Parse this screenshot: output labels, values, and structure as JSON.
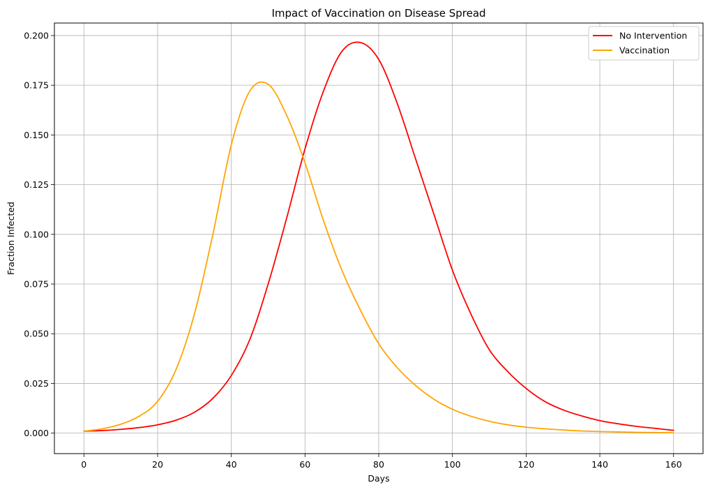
{
  "chart_data": {
    "type": "line",
    "title": "Impact of Vaccination on Disease Spread",
    "xlabel": "Days",
    "ylabel": "Fraction Infected",
    "xlim": [
      -8,
      168
    ],
    "ylim": [
      -0.0103,
      0.2063
    ],
    "xticks": [
      0,
      20,
      40,
      60,
      80,
      100,
      120,
      140,
      160
    ],
    "xtick_labels": [
      "0",
      "20",
      "40",
      "60",
      "80",
      "100",
      "120",
      "140",
      "160"
    ],
    "yticks": [
      0.0,
      0.025,
      0.05,
      0.075,
      0.1,
      0.125,
      0.15,
      0.175,
      0.2
    ],
    "ytick_labels": [
      "0.000",
      "0.025",
      "0.050",
      "0.075",
      "0.100",
      "0.125",
      "0.150",
      "0.175",
      "0.200"
    ],
    "grid": true,
    "legend_position": "top-right",
    "series": [
      {
        "name": "No Intervention",
        "color": "#ff0000",
        "x": [
          0,
          5,
          10,
          15,
          20,
          25,
          30,
          35,
          40,
          45,
          50,
          55,
          60,
          65,
          70,
          75,
          80,
          85,
          90,
          95,
          100,
          105,
          110,
          115,
          120,
          125,
          130,
          135,
          140,
          145,
          150,
          155,
          160
        ],
        "y": [
          0.001,
          0.0013,
          0.0019,
          0.0028,
          0.0042,
          0.0065,
          0.0105,
          0.0175,
          0.029,
          0.047,
          0.075,
          0.108,
          0.143,
          0.172,
          0.192,
          0.1965,
          0.188,
          0.166,
          0.138,
          0.11,
          0.082,
          0.06,
          0.042,
          0.031,
          0.0225,
          0.016,
          0.0117,
          0.0087,
          0.0063,
          0.0047,
          0.0034,
          0.0024,
          0.0014
        ]
      },
      {
        "name": "Vaccination",
        "color": "#ffa500",
        "x": [
          0,
          5,
          10,
          15,
          20,
          25,
          30,
          35,
          40,
          45,
          50,
          55,
          60,
          65,
          70,
          75,
          80,
          85,
          90,
          95,
          100,
          105,
          110,
          115,
          120,
          125,
          130,
          135,
          140,
          145,
          150,
          155,
          160
        ],
        "y": [
          0.001,
          0.0022,
          0.0045,
          0.0085,
          0.016,
          0.032,
          0.06,
          0.1,
          0.145,
          0.172,
          0.1755,
          0.16,
          0.136,
          0.107,
          0.082,
          0.062,
          0.045,
          0.033,
          0.024,
          0.017,
          0.012,
          0.0085,
          0.006,
          0.0042,
          0.003,
          0.0022,
          0.0016,
          0.0011,
          0.0008,
          0.0006,
          0.0004,
          0.0003,
          0.0002
        ]
      }
    ]
  }
}
